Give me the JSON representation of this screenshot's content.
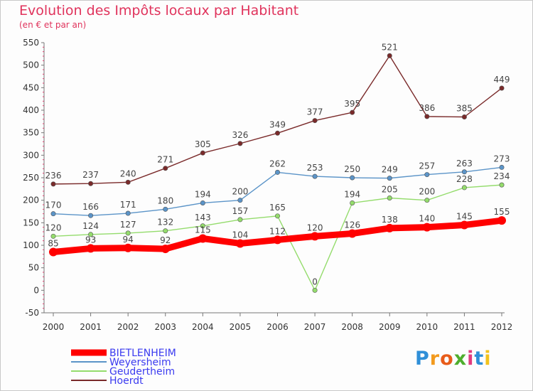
{
  "chart_data": {
    "type": "line",
    "title": "Evolution des Impôts locaux par Habitant",
    "subtitle": "(en € et par an)",
    "x": [
      "2000",
      "2001",
      "2002",
      "2003",
      "2004",
      "2005",
      "2006",
      "2007",
      "2008",
      "2009",
      "2010",
      "2011",
      "2012"
    ],
    "ylim": [
      -50,
      550
    ],
    "yticks": [
      -50,
      0,
      50,
      100,
      150,
      200,
      250,
      300,
      350,
      400,
      450,
      500,
      550
    ],
    "grid": false,
    "series": [
      {
        "name": "BIETLENHEIM",
        "color": "#ff0000",
        "values": [
          85,
          93,
          94,
          92,
          115,
          104,
          112,
          120,
          126,
          138,
          140,
          145,
          155
        ]
      },
      {
        "name": "Weyersheim",
        "color": "#5b94c8",
        "values": [
          170,
          166,
          171,
          180,
          194,
          200,
          262,
          253,
          250,
          249,
          257,
          263,
          273
        ]
      },
      {
        "name": "Geudertheim",
        "color": "#94dc6c",
        "values": [
          120,
          124,
          127,
          132,
          143,
          157,
          165,
          0,
          194,
          205,
          200,
          228,
          234
        ]
      },
      {
        "name": "Hoerdt",
        "color": "#7a2a2a",
        "values": [
          236,
          237,
          240,
          271,
          305,
          326,
          349,
          377,
          395,
          521,
          386,
          385,
          449
        ]
      }
    ]
  },
  "brand": "Proxiti"
}
